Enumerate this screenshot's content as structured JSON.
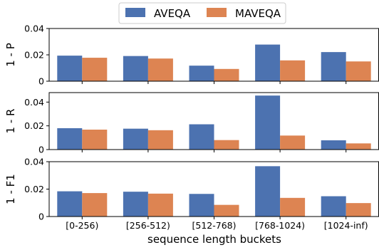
{
  "legend": {
    "items": [
      {
        "label": "AVEQA",
        "color": "#4c72b0"
      },
      {
        "label": "MAVEQA",
        "color": "#dd8452"
      }
    ]
  },
  "chart_data": [
    {
      "type": "bar",
      "title": "",
      "ylabel": "1 - P",
      "xlabel": "",
      "categories": [
        "[0-256)",
        "[256-512)",
        "[512-768)",
        "[768-1024)",
        "[1024-inf)"
      ],
      "ylim": [
        0,
        0.04
      ],
      "yticks": [
        "0",
        "0.02",
        "0.04"
      ],
      "series": [
        {
          "name": "AVEQA",
          "color": "#4c72b0",
          "values": [
            0.0194,
            0.0191,
            0.0118,
            0.0278,
            0.0221
          ]
        },
        {
          "name": "MAVEQA",
          "color": "#dd8452",
          "values": [
            0.0178,
            0.0172,
            0.0093,
            0.0158,
            0.015
          ]
        }
      ],
      "grid": false
    },
    {
      "type": "bar",
      "title": "",
      "ylabel": "1 - R",
      "xlabel": "",
      "categories": [
        "[0-256)",
        "[256-512)",
        "[512-768)",
        "[768-1024)",
        "[1024-inf)"
      ],
      "ylim": [
        0,
        0.048
      ],
      "yticks": [
        "0",
        "0.02",
        "0.04"
      ],
      "series": [
        {
          "name": "AVEQA",
          "color": "#4c72b0",
          "values": [
            0.018,
            0.0176,
            0.0213,
            0.0455,
            0.0078
          ]
        },
        {
          "name": "MAVEQA",
          "color": "#dd8452",
          "values": [
            0.0168,
            0.0163,
            0.008,
            0.0118,
            0.0052
          ]
        }
      ],
      "grid": false
    },
    {
      "type": "bar",
      "title": "",
      "ylabel": "1 - F1",
      "xlabel": "sequence length buckets",
      "categories": [
        "[0-256)",
        "[256-512)",
        "[512-768)",
        "[768-1024)",
        "[1024-inf)"
      ],
      "ylim": [
        0,
        0.04
      ],
      "yticks": [
        "0",
        "0.02",
        "0.04"
      ],
      "series": [
        {
          "name": "AVEQA",
          "color": "#4c72b0",
          "values": [
            0.0184,
            0.0181,
            0.0165,
            0.0367,
            0.0148
          ]
        },
        {
          "name": "MAVEQA",
          "color": "#dd8452",
          "values": [
            0.0171,
            0.0167,
            0.0085,
            0.0136,
            0.0098
          ]
        }
      ],
      "grid": false
    }
  ]
}
